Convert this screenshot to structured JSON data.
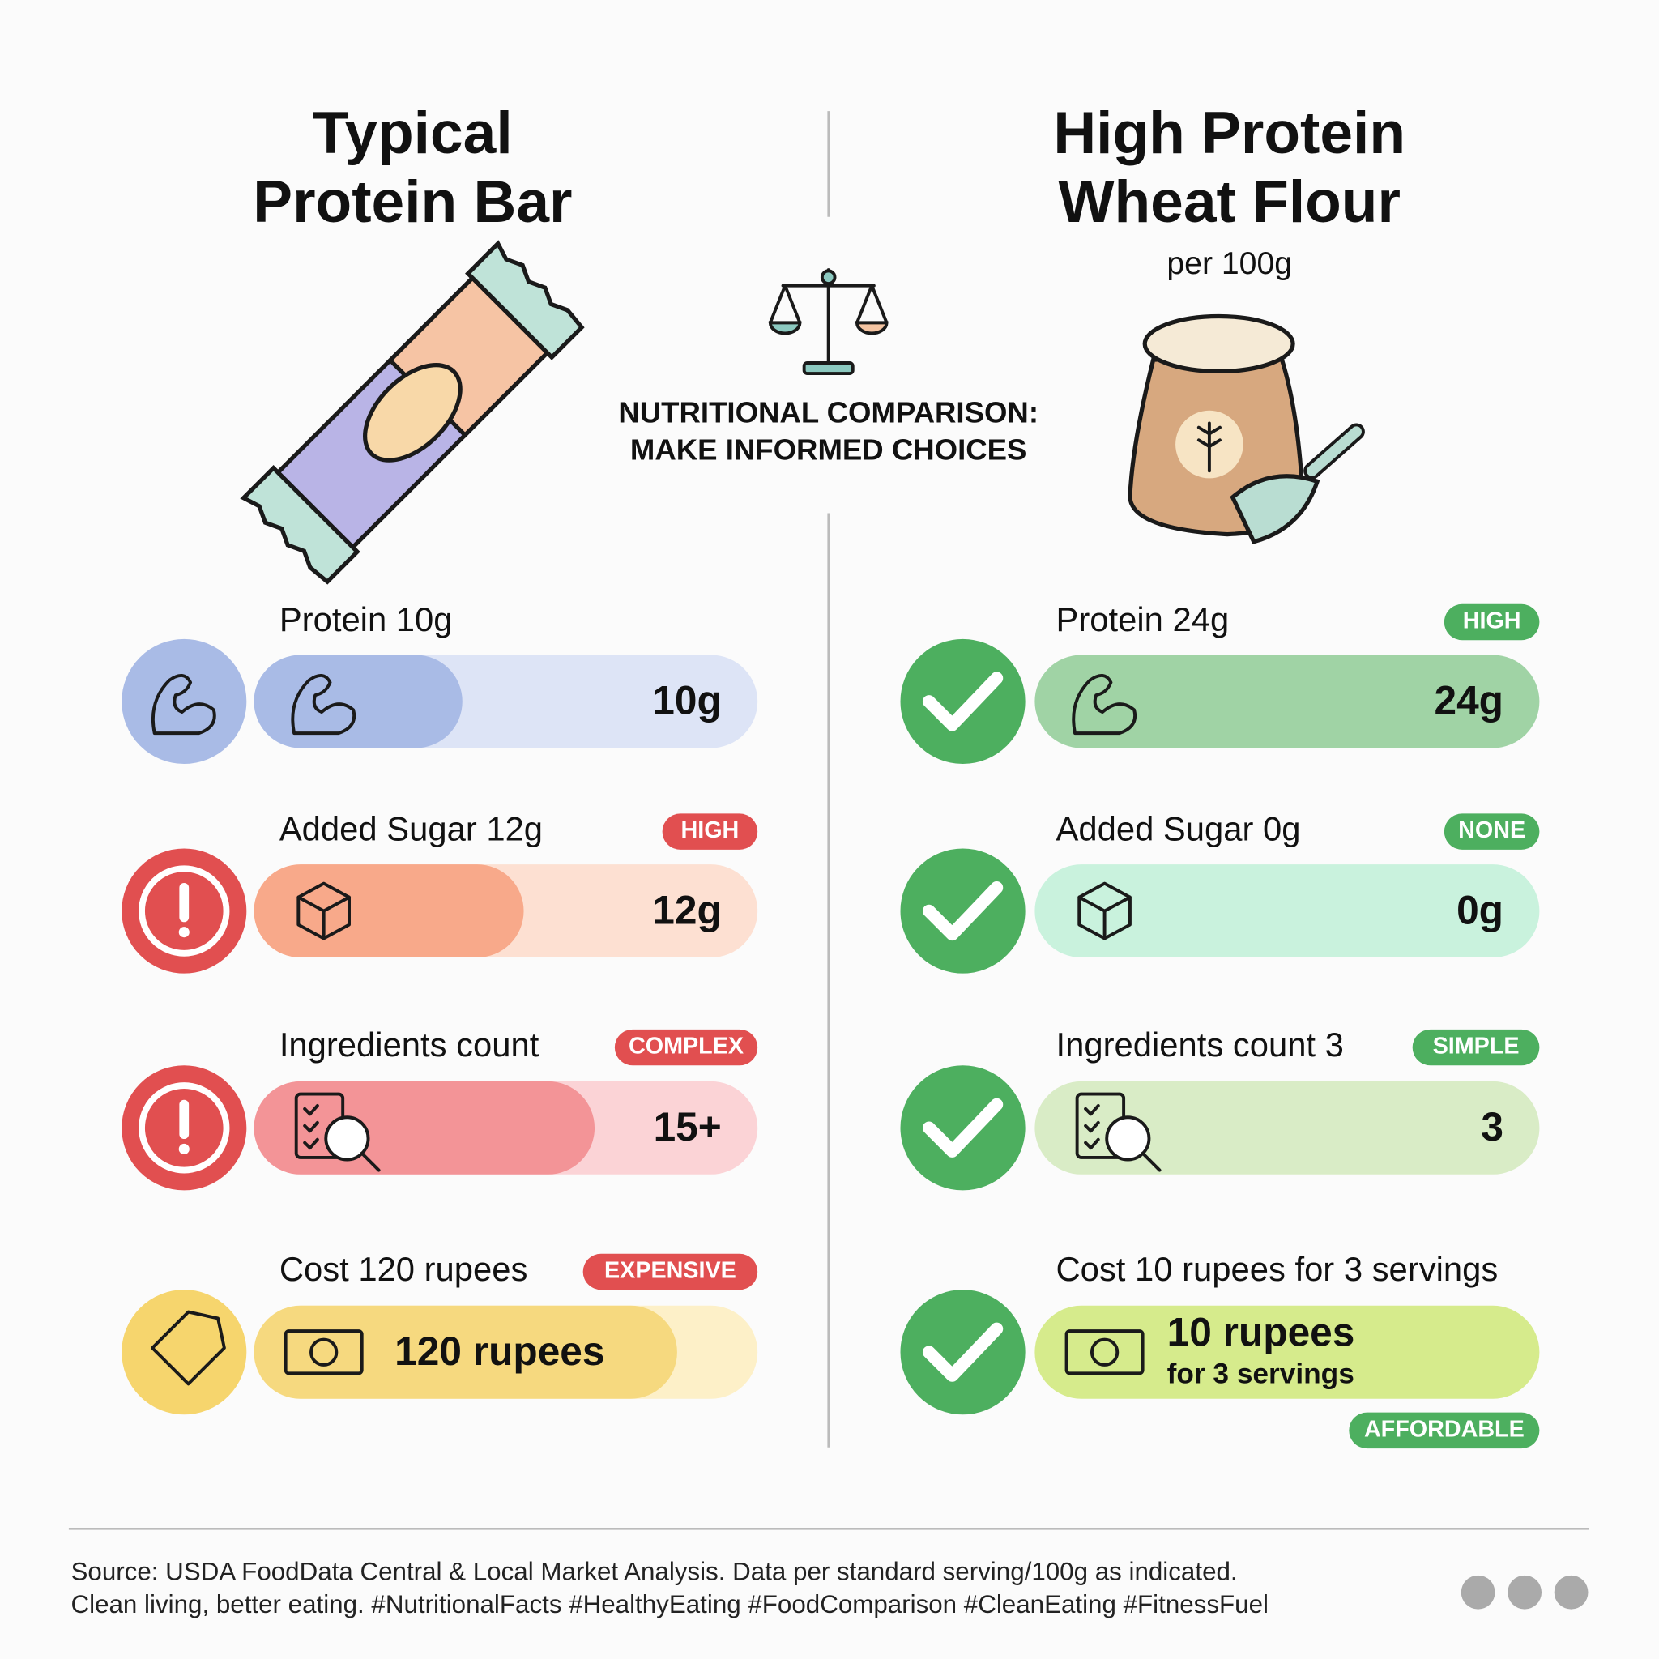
{
  "left": {
    "title": [
      "Typical",
      "Protein Bar"
    ],
    "rows": [
      {
        "label": "Protein 10g",
        "value": "10g"
      },
      {
        "label": "Added Sugar 12g",
        "badge": "HIGH",
        "value": "12g"
      },
      {
        "label": "Ingredients count",
        "badge": "COMPLEX",
        "value": "15+"
      },
      {
        "label": "Cost 120 rupees",
        "badge": "EXPENSIVE",
        "value": "120 rupees"
      }
    ]
  },
  "center": {
    "heading": [
      "NUTRITIONAL COMPARISON:",
      "MAKE INFORMED CHOICES"
    ]
  },
  "right": {
    "title": [
      "High Protein",
      "Wheat Flour"
    ],
    "subtitle": "per 100g",
    "rows": [
      {
        "label": "Protein 24g",
        "badge": "HIGH",
        "value": "24g"
      },
      {
        "label": "Added Sugar 0g",
        "badge": "NONE",
        "value": "0g"
      },
      {
        "label": "Ingredients count 3",
        "badge": "SIMPLE",
        "value": "3"
      },
      {
        "label": "Cost 10 rupees for 3 servings",
        "badge": "AFFORDABLE",
        "value": "10 rupees",
        "value_note": "for 3 servings"
      }
    ]
  },
  "footer": {
    "lines": [
      "Source: USDA FoodData Central & Local Market Analysis. Data per standard serving/100g as indicated.",
      "Clean living, better eating. #NutritionalFacts #HealthyEating #FoodComparison #CleanEating #FitnessFuel"
    ]
  }
}
